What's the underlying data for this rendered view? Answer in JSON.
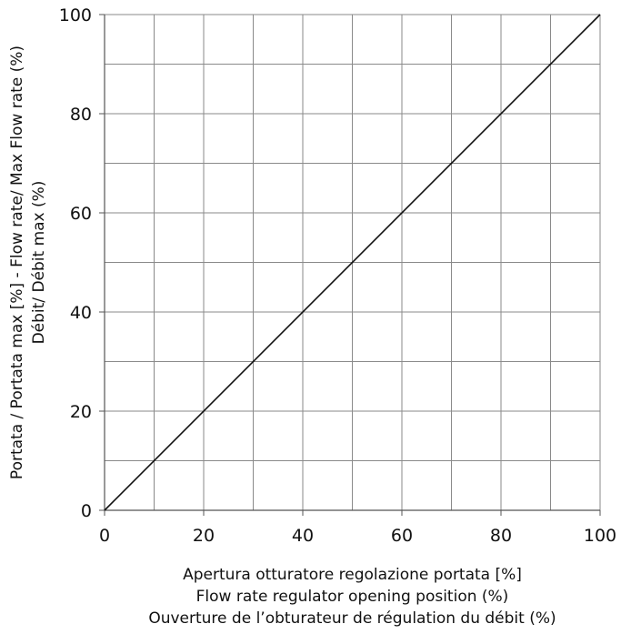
{
  "chart_data": {
    "type": "line",
    "title": "",
    "xlabel_lines": [
      "Apertura otturatore regolazione portata [%]",
      "Flow rate regulator opening position (%)",
      "Ouverture de l’obturateur de régulation du débit (%)"
    ],
    "ylabel_lines": [
      "Portata / Portata max [%] - Flow rate/ Max Flow rate (%)",
      "Débit/ Débit max (%)"
    ],
    "xlim": [
      0,
      100
    ],
    "ylim": [
      0,
      100
    ],
    "x_ticks": [
      0,
      20,
      40,
      60,
      80,
      100
    ],
    "y_ticks": [
      0,
      20,
      40,
      60,
      80,
      100
    ],
    "x_tick_labels": [
      "0",
      "20",
      "40",
      "60",
      "80",
      "100"
    ],
    "y_tick_labels": [
      "0",
      "20",
      "40",
      "60",
      "80",
      "100"
    ],
    "grid": true,
    "grid_step": 10,
    "series": [
      {
        "x": [
          0,
          100
        ],
        "y": [
          0,
          100
        ],
        "color": "#111111"
      }
    ]
  }
}
